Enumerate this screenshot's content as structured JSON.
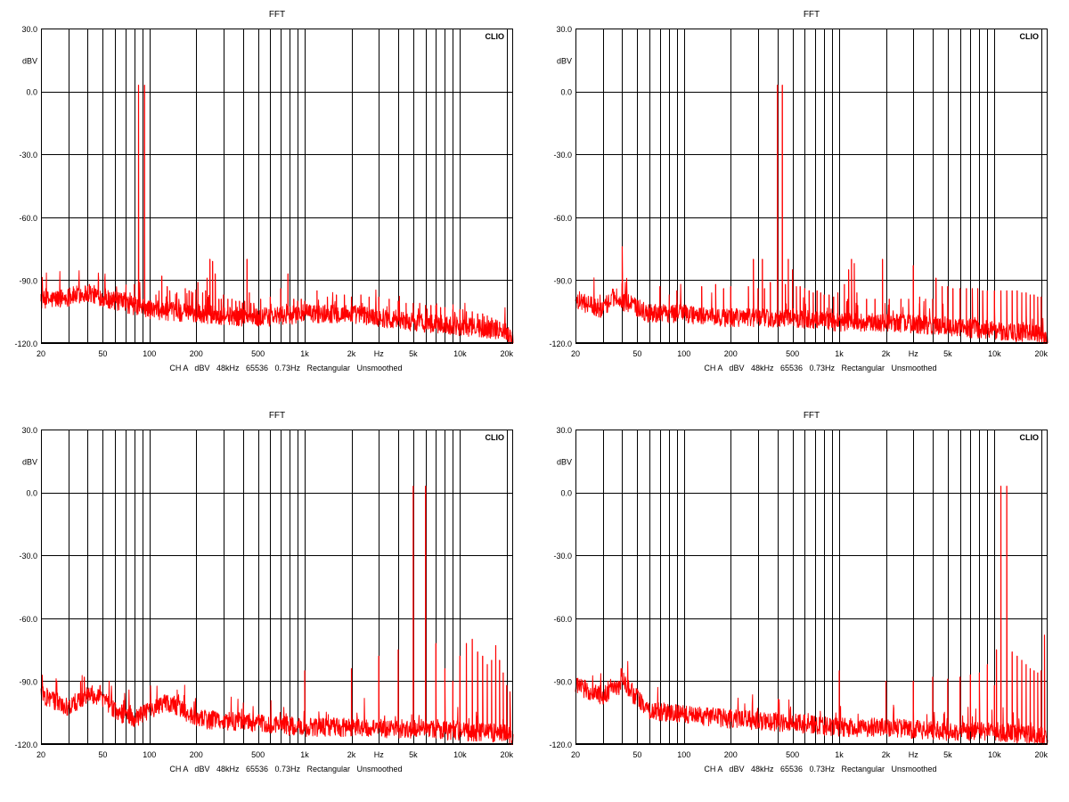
{
  "chart_data": [
    {
      "type": "line",
      "title": "FFT",
      "brand": "CLIO",
      "ylabel": "dBV",
      "xunit": "Hz",
      "footer": "CH A   dBV   48kHz   65536   0.73Hz   Rectangular   Unsmoothed",
      "x_scale": "log",
      "xlim": [
        20,
        22000
      ],
      "ylim": [
        -120,
        30
      ],
      "grid": true,
      "color": "#ff0000",
      "x_ticks": [
        {
          "value": 20,
          "label": "20"
        },
        {
          "value": 50,
          "label": "50"
        },
        {
          "value": 100,
          "label": "100"
        },
        {
          "value": 200,
          "label": "200"
        },
        {
          "value": 500,
          "label": "500"
        },
        {
          "value": 1000,
          "label": "1k"
        },
        {
          "value": 2000,
          "label": "2k"
        },
        {
          "value": 5000,
          "label": "5k"
        },
        {
          "value": 10000,
          "label": "10k"
        },
        {
          "value": 20000,
          "label": "20k"
        }
      ],
      "y_ticks": [
        {
          "value": 30,
          "label": "30.0"
        },
        {
          "value": 0,
          "label": "0.0"
        },
        {
          "value": -30,
          "label": "-30.0"
        },
        {
          "value": -60,
          "label": "-60.0"
        },
        {
          "value": -90,
          "label": "-90.0"
        },
        {
          "value": -120,
          "label": "-120.0"
        }
      ],
      "noise_floor": [
        [
          20,
          -100
        ],
        [
          30,
          -98
        ],
        [
          40,
          -96
        ],
        [
          60,
          -100
        ],
        [
          100,
          -104
        ],
        [
          200,
          -106
        ],
        [
          500,
          -108
        ],
        [
          1000,
          -106
        ],
        [
          2000,
          -106
        ],
        [
          5000,
          -110
        ],
        [
          10000,
          -112
        ],
        [
          20000,
          -114
        ],
        [
          22000,
          -119
        ]
      ],
      "peaks": [
        [
          19,
          -100
        ],
        [
          27,
          -100
        ],
        [
          29,
          -100
        ],
        [
          38,
          -100
        ],
        [
          40,
          -100
        ],
        [
          41,
          -92
        ],
        [
          45,
          -98
        ],
        [
          47,
          -99
        ],
        [
          50,
          -100
        ],
        [
          52,
          -94
        ],
        [
          55,
          -96
        ],
        [
          58,
          -97
        ],
        [
          60,
          -98
        ],
        [
          70,
          -96
        ],
        [
          75,
          -96
        ],
        [
          80,
          -92
        ],
        [
          85,
          3
        ],
        [
          93,
          3
        ],
        [
          100,
          -100
        ],
        [
          110,
          -97
        ],
        [
          120,
          -88
        ],
        [
          130,
          -93
        ],
        [
          135,
          -95
        ],
        [
          150,
          -96
        ],
        [
          170,
          -94
        ],
        [
          180,
          -95
        ],
        [
          190,
          -96
        ],
        [
          205,
          -91
        ],
        [
          220,
          -96
        ],
        [
          230,
          -95
        ],
        [
          235,
          -89
        ],
        [
          245,
          -80
        ],
        [
          255,
          -81
        ],
        [
          265,
          -87
        ],
        [
          280,
          -99
        ],
        [
          290,
          -99
        ],
        [
          300,
          -97
        ],
        [
          320,
          -99
        ],
        [
          340,
          -99
        ],
        [
          360,
          -100
        ],
        [
          380,
          -100
        ],
        [
          400,
          -101
        ],
        [
          410,
          -100
        ],
        [
          425,
          -80
        ],
        [
          440,
          -96
        ],
        [
          450,
          -101
        ],
        [
          470,
          -101
        ],
        [
          520,
          -99
        ],
        [
          600,
          -98
        ],
        [
          700,
          -94
        ],
        [
          780,
          -87
        ],
        [
          850,
          -99
        ],
        [
          900,
          -100
        ],
        [
          950,
          -99
        ],
        [
          1000,
          -100
        ],
        [
          1200,
          -95
        ],
        [
          1400,
          -98
        ],
        [
          1600,
          -97
        ],
        [
          1800,
          -97
        ],
        [
          2000,
          -98
        ],
        [
          2300,
          -97
        ],
        [
          2600,
          -98
        ],
        [
          3000,
          -98
        ],
        [
          3500,
          -99
        ],
        [
          4000,
          -100
        ],
        [
          4500,
          -101
        ],
        [
          5000,
          -101
        ],
        [
          5500,
          -101
        ],
        [
          6000,
          -102
        ],
        [
          6500,
          -102
        ],
        [
          7000,
          -102
        ],
        [
          7500,
          -103
        ],
        [
          8000,
          -103
        ],
        [
          9000,
          -104
        ],
        [
          10000,
          -104
        ],
        [
          11000,
          -105
        ],
        [
          12000,
          -105
        ],
        [
          13000,
          -106
        ],
        [
          14000,
          -106
        ],
        [
          15000,
          -107
        ],
        [
          16000,
          -108
        ],
        [
          17000,
          -109
        ],
        [
          18000,
          -110
        ],
        [
          19000,
          -111
        ]
      ]
    },
    {
      "type": "line",
      "title": "FFT",
      "brand": "CLIO",
      "ylabel": "dBV",
      "xunit": "Hz",
      "footer": "CH A   dBV   48kHz   65536   0.73Hz   Rectangular   Unsmoothed",
      "x_scale": "log",
      "xlim": [
        20,
        22000
      ],
      "ylim": [
        -120,
        30
      ],
      "grid": true,
      "color": "#ff0000",
      "x_ticks": [
        {
          "value": 20,
          "label": "20"
        },
        {
          "value": 50,
          "label": "50"
        },
        {
          "value": 100,
          "label": "100"
        },
        {
          "value": 200,
          "label": "200"
        },
        {
          "value": 500,
          "label": "500"
        },
        {
          "value": 1000,
          "label": "1k"
        },
        {
          "value": 2000,
          "label": "2k"
        },
        {
          "value": 5000,
          "label": "5k"
        },
        {
          "value": 10000,
          "label": "10k"
        },
        {
          "value": 20000,
          "label": "20k"
        }
      ],
      "y_ticks": [
        {
          "value": 30,
          "label": "30.0"
        },
        {
          "value": 0,
          "label": "0.0"
        },
        {
          "value": -30,
          "label": "-30.0"
        },
        {
          "value": -60,
          "label": "-60.0"
        },
        {
          "value": -90,
          "label": "-90.0"
        },
        {
          "value": -120,
          "label": "-120.0"
        }
      ],
      "noise_floor": [
        [
          20,
          -99
        ],
        [
          25,
          -102
        ],
        [
          30,
          -104
        ],
        [
          35,
          -98
        ],
        [
          40,
          -100
        ],
        [
          60,
          -106
        ],
        [
          100,
          -106
        ],
        [
          200,
          -108
        ],
        [
          500,
          -108
        ],
        [
          1000,
          -110
        ],
        [
          2000,
          -110
        ],
        [
          5000,
          -112
        ],
        [
          10000,
          -114
        ],
        [
          20000,
          -116
        ],
        [
          22000,
          -119
        ]
      ],
      "peaks": [
        [
          40,
          -74
        ],
        [
          70,
          -93
        ],
        [
          90,
          -95
        ],
        [
          130,
          -93
        ],
        [
          160,
          -92
        ],
        [
          180,
          -94
        ],
        [
          200,
          -93
        ],
        [
          260,
          -93
        ],
        [
          280,
          -80
        ],
        [
          300,
          -94
        ],
        [
          320,
          -80
        ],
        [
          330,
          -94
        ],
        [
          360,
          -91
        ],
        [
          400,
          3
        ],
        [
          430,
          3
        ],
        [
          450,
          -92
        ],
        [
          470,
          -80
        ],
        [
          500,
          -85
        ],
        [
          530,
          -93
        ],
        [
          560,
          -93
        ],
        [
          600,
          -94
        ],
        [
          640,
          -95
        ],
        [
          680,
          -96
        ],
        [
          720,
          -95
        ],
        [
          760,
          -96
        ],
        [
          800,
          -97
        ],
        [
          860,
          -97
        ],
        [
          920,
          -98
        ],
        [
          980,
          -96
        ],
        [
          1080,
          -92
        ],
        [
          1150,
          -85
        ],
        [
          1200,
          -80
        ],
        [
          1250,
          -82
        ],
        [
          1300,
          -96
        ],
        [
          1500,
          -99
        ],
        [
          1700,
          -99
        ],
        [
          1900,
          -80
        ],
        [
          2100,
          -99
        ],
        [
          2500,
          -99
        ],
        [
          2800,
          -99
        ],
        [
          3000,
          -83
        ],
        [
          3300,
          -98
        ],
        [
          3600,
          -99
        ],
        [
          4000,
          -99
        ],
        [
          4200,
          -89
        ],
        [
          4600,
          -93
        ],
        [
          5000,
          -93
        ],
        [
          5400,
          -94
        ],
        [
          6000,
          -94
        ],
        [
          6600,
          -94
        ],
        [
          7200,
          -94
        ],
        [
          7800,
          -94
        ],
        [
          8400,
          -95
        ],
        [
          9000,
          -95
        ],
        [
          10000,
          -95
        ],
        [
          11000,
          -95
        ],
        [
          12000,
          -95
        ],
        [
          13000,
          -95
        ],
        [
          14000,
          -95
        ],
        [
          15000,
          -96
        ],
        [
          16000,
          -96
        ],
        [
          17000,
          -97
        ],
        [
          18000,
          -97
        ],
        [
          19000,
          -98
        ],
        [
          20000,
          -98
        ]
      ]
    },
    {
      "type": "line",
      "title": "FFT",
      "brand": "CLIO",
      "ylabel": "dBV",
      "xunit": "Hz",
      "footer": "CH A   dBV   48kHz   65536   0.73Hz   Rectangular   Unsmoothed",
      "x_scale": "log",
      "xlim": [
        20,
        22000
      ],
      "ylim": [
        -120,
        30
      ],
      "grid": true,
      "color": "#ff0000",
      "x_ticks": [
        {
          "value": 20,
          "label": "20"
        },
        {
          "value": 50,
          "label": "50"
        },
        {
          "value": 100,
          "label": "100"
        },
        {
          "value": 200,
          "label": "200"
        },
        {
          "value": 500,
          "label": "500"
        },
        {
          "value": 1000,
          "label": "1k"
        },
        {
          "value": 2000,
          "label": "2k"
        },
        {
          "value": 5000,
          "label": "5k"
        },
        {
          "value": 10000,
          "label": "10k"
        },
        {
          "value": 20000,
          "label": "20k"
        }
      ],
      "y_ticks": [
        {
          "value": 30,
          "label": "30.0"
        },
        {
          "value": 0,
          "label": "0.0"
        },
        {
          "value": -30,
          "label": "-30.0"
        },
        {
          "value": -60,
          "label": "-60.0"
        },
        {
          "value": -90,
          "label": "-90.0"
        },
        {
          "value": -120,
          "label": "-120.0"
        }
      ],
      "noise_floor": [
        [
          20,
          -96
        ],
        [
          30,
          -103
        ],
        [
          40,
          -96
        ],
        [
          50,
          -98
        ],
        [
          60,
          -104
        ],
        [
          80,
          -108
        ],
        [
          100,
          -104
        ],
        [
          130,
          -100
        ],
        [
          150,
          -102
        ],
        [
          200,
          -108
        ],
        [
          500,
          -110
        ],
        [
          1000,
          -112
        ],
        [
          2000,
          -112
        ],
        [
          5000,
          -113
        ],
        [
          10000,
          -114
        ],
        [
          20000,
          -115
        ],
        [
          22000,
          -119
        ]
      ],
      "peaks": [
        [
          36,
          -90
        ],
        [
          38,
          -88
        ],
        [
          48,
          -92
        ],
        [
          1000,
          -85
        ],
        [
          2000,
          -84
        ],
        [
          3000,
          -78
        ],
        [
          4000,
          -75
        ],
        [
          5000,
          3
        ],
        [
          6000,
          3
        ],
        [
          7000,
          -72
        ],
        [
          8000,
          -84
        ],
        [
          9000,
          -90
        ],
        [
          10000,
          -78
        ],
        [
          11000,
          -72
        ],
        [
          12000,
          -70
        ],
        [
          13000,
          -76
        ],
        [
          14000,
          -78
        ],
        [
          15000,
          -82
        ],
        [
          16000,
          -80
        ],
        [
          17000,
          -73
        ],
        [
          18000,
          -80
        ],
        [
          19000,
          -86
        ],
        [
          20000,
          -92
        ],
        [
          21000,
          -95
        ]
      ]
    },
    {
      "type": "line",
      "title": "FFT",
      "brand": "CLIO",
      "ylabel": "dBV",
      "xunit": "Hz",
      "footer": "CH A   dBV   48kHz   65536   0.73Hz   Rectangular   Unsmoothed",
      "x_scale": "log",
      "xlim": [
        20,
        22000
      ],
      "ylim": [
        -120,
        30
      ],
      "grid": true,
      "color": "#ff0000",
      "x_ticks": [
        {
          "value": 20,
          "label": "20"
        },
        {
          "value": 50,
          "label": "50"
        },
        {
          "value": 100,
          "label": "100"
        },
        {
          "value": 200,
          "label": "200"
        },
        {
          "value": 500,
          "label": "500"
        },
        {
          "value": 1000,
          "label": "1k"
        },
        {
          "value": 2000,
          "label": "2k"
        },
        {
          "value": 5000,
          "label": "5k"
        },
        {
          "value": 10000,
          "label": "10k"
        },
        {
          "value": 20000,
          "label": "20k"
        }
      ],
      "y_ticks": [
        {
          "value": 30,
          "label": "30.0"
        },
        {
          "value": 0,
          "label": "0.0"
        },
        {
          "value": -30,
          "label": "-30.0"
        },
        {
          "value": -60,
          "label": "-60.0"
        },
        {
          "value": -90,
          "label": "-90.0"
        },
        {
          "value": -120,
          "label": "-120.0"
        }
      ],
      "noise_floor": [
        [
          20,
          -92
        ],
        [
          30,
          -97
        ],
        [
          38,
          -93
        ],
        [
          40,
          -88
        ],
        [
          45,
          -95
        ],
        [
          60,
          -104
        ],
        [
          100,
          -106
        ],
        [
          200,
          -108
        ],
        [
          500,
          -110
        ],
        [
          1000,
          -112
        ],
        [
          2000,
          -112
        ],
        [
          5000,
          -114
        ],
        [
          10000,
          -114
        ],
        [
          20000,
          -116
        ],
        [
          22000,
          -119
        ]
      ],
      "peaks": [
        [
          1000,
          -85
        ],
        [
          2000,
          -90
        ],
        [
          3000,
          -90
        ],
        [
          4000,
          -88
        ],
        [
          5000,
          -89
        ],
        [
          6000,
          -88
        ],
        [
          7000,
          -87
        ],
        [
          8000,
          -86
        ],
        [
          9000,
          -82
        ],
        [
          10000,
          -92
        ],
        [
          10300,
          -75
        ],
        [
          11000,
          3
        ],
        [
          12000,
          3
        ],
        [
          13000,
          -76
        ],
        [
          14000,
          -78
        ],
        [
          15000,
          -80
        ],
        [
          16000,
          -82
        ],
        [
          17000,
          -84
        ],
        [
          18000,
          -85
        ],
        [
          19000,
          -86
        ],
        [
          20000,
          -85
        ],
        [
          21000,
          -68
        ]
      ]
    }
  ]
}
